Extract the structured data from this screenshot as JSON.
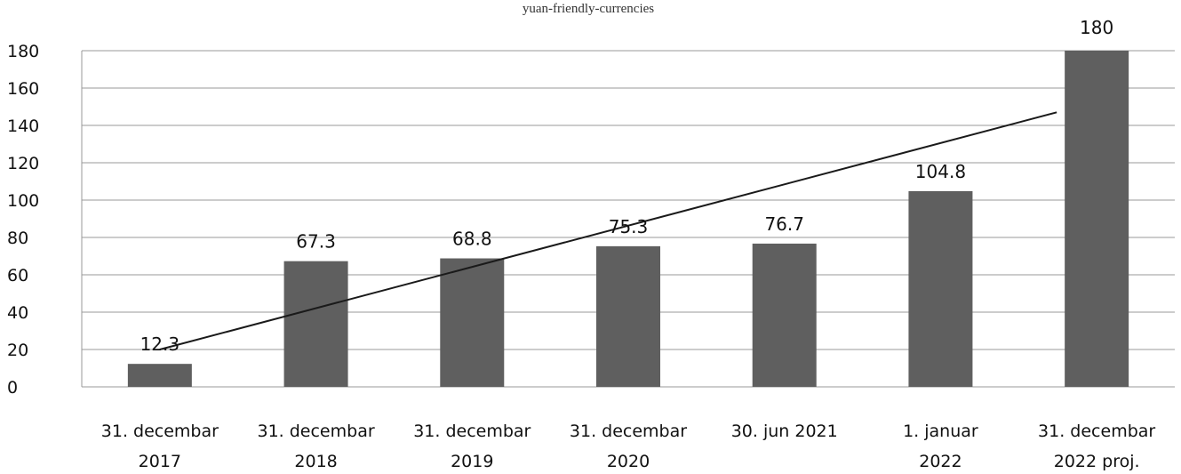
{
  "chart_data": {
    "type": "bar",
    "title": "",
    "subtitle": "yuan-friendly-currencies",
    "xlabel": "",
    "ylabel": "",
    "ylim": [
      0,
      180
    ],
    "yticks": [
      0,
      20,
      40,
      60,
      80,
      100,
      120,
      140,
      160,
      180
    ],
    "grid": true,
    "legend": "none",
    "categories": [
      [
        "31. decembar",
        "2017"
      ],
      [
        "31. decembar",
        "2018"
      ],
      [
        "31. decembar",
        "2019"
      ],
      [
        "31. decembar",
        "2020"
      ],
      [
        "30. jun 2021"
      ],
      [
        "1. januar",
        "2022"
      ],
      [
        "31. decembar",
        "2022 proj."
      ]
    ],
    "values": [
      12.3,
      67.3,
      68.8,
      75.3,
      76.7,
      104.8,
      180
    ],
    "data_labels": [
      "12.3",
      "67.3",
      "68.8",
      "75.3",
      "76.7",
      "104.8",
      "180"
    ],
    "trendline": {
      "type": "linear",
      "start": 20,
      "end": 147
    },
    "colors": {
      "bar": "#5f5f5f",
      "trend": "#1a1a1a",
      "grid": "#999999"
    }
  }
}
